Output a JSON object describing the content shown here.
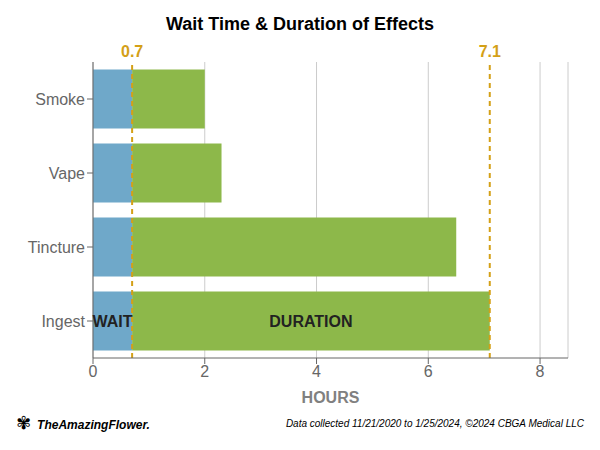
{
  "chart_data": {
    "type": "bar",
    "orientation": "horizontal",
    "stacked": true,
    "title": "Wait Time & Duration of Effects",
    "xlabel": "HOURS",
    "categories": [
      "Smoke",
      "Vape",
      "Tincture",
      "Ingest"
    ],
    "series": [
      {
        "color": "#6fa8c9",
        "values": [
          0.7,
          0.7,
          0.7,
          0.7
        ]
      },
      {
        "color": "#8db84a",
        "values": [
          1.3,
          1.6,
          5.8,
          6.4
        ]
      }
    ],
    "xlim": [
      0,
      8.5
    ],
    "xticks": [
      0,
      2,
      4,
      6,
      8
    ],
    "grid": true,
    "reference_lines": [
      {
        "x": 0.7,
        "label": "0.7",
        "color": "#d4a017"
      },
      {
        "x": 7.1,
        "label": "7.1",
        "color": "#d4a017"
      }
    ],
    "annotations": [
      {
        "text": "WAIT",
        "x": 0.35,
        "y": "Ingest"
      },
      {
        "text": "DURATION",
        "x": 3.9,
        "y": "Ingest"
      }
    ],
    "footer": "Data collected 11/21/2020 to 1/25/2024, ©2024 CBGA Medical LLC",
    "brand": "TheAmazingFlower.",
    "brand_icon": "✾"
  }
}
